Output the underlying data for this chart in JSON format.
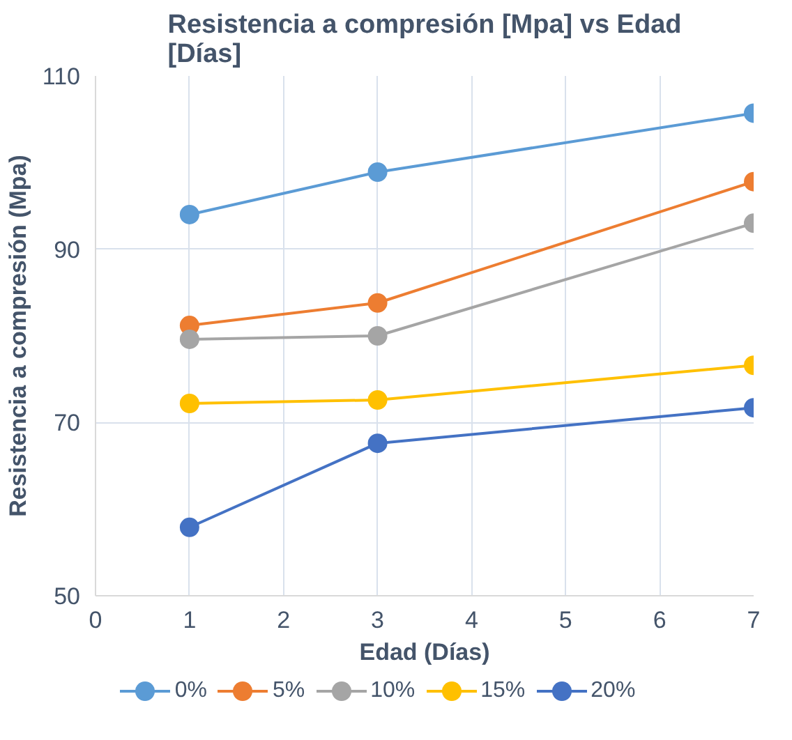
{
  "chart_data": {
    "type": "line",
    "title": "Resistencia a compresión [Mpa] vs Edad [Días]",
    "xlabel": "Edad (Días)",
    "ylabel": "Resistencia a compresión (Mpa)",
    "x": [
      1,
      3,
      7
    ],
    "xlim": [
      0,
      7
    ],
    "xticks": [
      0,
      1,
      2,
      3,
      4,
      5,
      6,
      7
    ],
    "ylim": [
      50,
      110
    ],
    "yticks": [
      50,
      70,
      90,
      110
    ],
    "grid": true,
    "legend": "bottom",
    "marker": "circle",
    "series": [
      {
        "name": "0%",
        "color": "#5b9bd5",
        "values": [
          94.0,
          98.9,
          105.7
        ]
      },
      {
        "name": "5%",
        "color": "#ed7d31",
        "values": [
          81.2,
          83.8,
          97.8
        ]
      },
      {
        "name": "10%",
        "color": "#a5a5a5",
        "values": [
          79.6,
          80.0,
          93.0
        ]
      },
      {
        "name": "15%",
        "color": "#ffc000",
        "values": [
          72.2,
          72.6,
          76.6
        ]
      },
      {
        "name": "20%",
        "color": "#4472c4",
        "values": [
          57.9,
          67.6,
          71.7
        ]
      }
    ]
  }
}
